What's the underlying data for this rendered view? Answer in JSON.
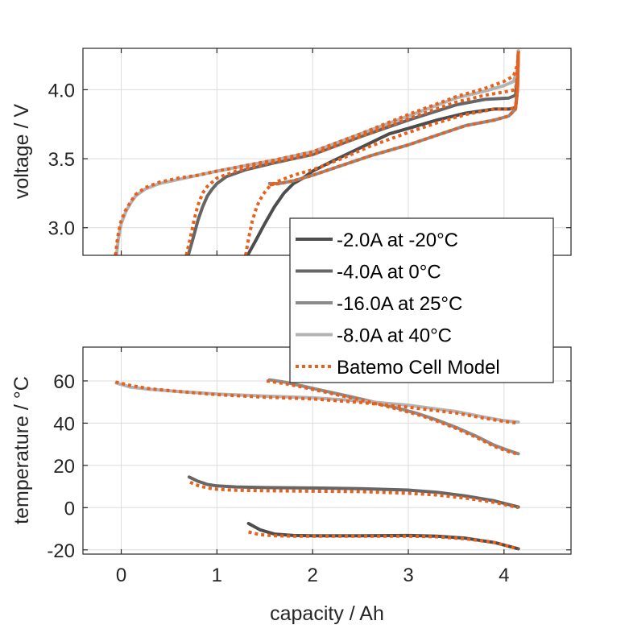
{
  "chart_data": [
    {
      "type": "line",
      "panel": "top",
      "title": "",
      "xlabel": "",
      "ylabel": "voltage / V",
      "xlim": [
        -0.4,
        4.7
      ],
      "ylim": [
        2.8,
        4.3
      ],
      "xticks": [
        0,
        1,
        2,
        3,
        4
      ],
      "xtick_labels": [],
      "yticks": [
        3.0,
        3.5,
        4.0
      ],
      "ytick_labels": [
        "3.0",
        "3.5",
        "4.0"
      ],
      "grid": true,
      "series": [
        {
          "name": "-2.0A at -20°C",
          "color": "#4d4d4d",
          "style": "solid",
          "x": [
            1.32,
            1.4,
            1.5,
            1.6,
            1.7,
            1.8,
            1.9,
            2.0,
            2.2,
            2.5,
            2.8,
            3.0,
            3.3,
            3.6,
            3.9,
            4.05,
            4.12,
            4.14,
            4.15
          ],
          "y": [
            2.8,
            2.9,
            3.03,
            3.15,
            3.25,
            3.32,
            3.36,
            3.41,
            3.48,
            3.58,
            3.68,
            3.72,
            3.78,
            3.83,
            3.86,
            3.86,
            3.87,
            4.0,
            4.28
          ]
        },
        {
          "name": "-4.0A at 0°C",
          "color": "#666666",
          "style": "solid",
          "x": [
            0.7,
            0.75,
            0.8,
            0.85,
            0.9,
            0.95,
            1.0,
            1.1,
            1.3,
            1.6,
            2.0,
            2.5,
            3.0,
            3.5,
            3.8,
            4.05,
            4.12,
            4.14,
            4.15
          ],
          "y": [
            2.8,
            2.92,
            3.05,
            3.15,
            3.23,
            3.28,
            3.32,
            3.37,
            3.42,
            3.47,
            3.53,
            3.66,
            3.78,
            3.89,
            3.93,
            3.94,
            3.96,
            4.1,
            4.28
          ]
        },
        {
          "name": "-16.0A at 25°C",
          "color": "#8c8c8c",
          "style": "solid",
          "x": [
            1.55,
            1.65,
            1.8,
            2.0,
            2.3,
            2.6,
            3.0,
            3.3,
            3.6,
            3.9,
            4.05,
            4.12,
            4.14,
            4.15
          ],
          "y": [
            3.32,
            3.32,
            3.34,
            3.38,
            3.45,
            3.52,
            3.6,
            3.67,
            3.74,
            3.78,
            3.81,
            3.86,
            4.0,
            4.28
          ]
        },
        {
          "name": "-8.0A at 40°C",
          "color": "#b3b3b3",
          "style": "solid",
          "x": [
            -0.05,
            -0.03,
            0.0,
            0.05,
            0.1,
            0.15,
            0.25,
            0.4,
            0.6,
            0.8,
            1.0,
            1.3,
            1.6,
            2.0,
            2.5,
            3.0,
            3.5,
            3.8,
            4.0,
            4.1,
            4.14,
            4.15
          ],
          "y": [
            2.8,
            2.92,
            3.03,
            3.12,
            3.18,
            3.23,
            3.28,
            3.32,
            3.35,
            3.38,
            3.41,
            3.45,
            3.49,
            3.55,
            3.68,
            3.81,
            3.94,
            3.99,
            4.03,
            4.06,
            4.15,
            4.28
          ]
        },
        {
          "name": "Batemo Cell Model",
          "color": "#e8601c",
          "style": "dotted",
          "segments": [
            {
              "x": [
                1.3,
                1.33,
                1.37,
                1.42,
                1.48,
                1.55,
                1.65,
                1.8,
                2.0,
                2.3,
                2.6,
                3.0,
                3.3,
                3.6,
                3.9,
                4.05,
                4.12,
                4.14,
                4.15
              ],
              "y": [
                2.8,
                2.92,
                3.05,
                3.16,
                3.24,
                3.3,
                3.34,
                3.38,
                3.42,
                3.5,
                3.59,
                3.69,
                3.76,
                3.82,
                3.86,
                3.86,
                3.87,
                4.0,
                4.28
              ]
            },
            {
              "x": [
                0.68,
                0.72,
                0.76,
                0.8,
                0.85,
                0.9,
                1.0,
                1.2,
                1.5,
                2.0,
                2.5,
                3.0,
                3.5,
                3.8,
                4.05,
                4.12,
                4.14,
                4.15
              ],
              "y": [
                2.8,
                2.92,
                3.05,
                3.16,
                3.25,
                3.3,
                3.36,
                3.41,
                3.46,
                3.53,
                3.66,
                3.79,
                3.91,
                3.96,
                3.99,
                4.0,
                4.1,
                4.28
              ]
            },
            {
              "x": [
                1.55,
                1.65,
                1.8,
                2.0,
                2.3,
                2.6,
                3.0,
                3.3,
                3.6,
                3.9,
                4.05,
                4.12,
                4.14,
                4.15
              ],
              "y": [
                3.31,
                3.32,
                3.34,
                3.38,
                3.45,
                3.52,
                3.6,
                3.67,
                3.74,
                3.78,
                3.81,
                3.86,
                4.0,
                4.28
              ]
            },
            {
              "x": [
                -0.06,
                -0.04,
                -0.01,
                0.04,
                0.1,
                0.15,
                0.25,
                0.4,
                0.6,
                0.8,
                1.0,
                1.3,
                1.6,
                2.0,
                2.5,
                3.0,
                3.5,
                3.8,
                4.0,
                4.1,
                4.14,
                4.15
              ],
              "y": [
                2.8,
                2.92,
                3.03,
                3.12,
                3.19,
                3.24,
                3.29,
                3.33,
                3.36,
                3.38,
                3.41,
                3.45,
                3.49,
                3.55,
                3.68,
                3.82,
                3.95,
                4.01,
                4.06,
                4.1,
                4.18,
                4.28
              ]
            }
          ]
        }
      ]
    },
    {
      "type": "line",
      "panel": "bottom",
      "title": "",
      "xlabel": "capacity / Ah",
      "ylabel": "temperature / °C",
      "xlim": [
        -0.4,
        4.7
      ],
      "ylim": [
        -22,
        76
      ],
      "xticks": [
        0,
        1,
        2,
        3,
        4
      ],
      "xtick_labels": [
        "0",
        "1",
        "2",
        "3",
        "4"
      ],
      "yticks": [
        -20,
        0,
        20,
        40,
        60
      ],
      "ytick_labels": [
        "-20",
        "0",
        "20",
        "40",
        "60"
      ],
      "grid": true,
      "series": [
        {
          "name": "-2.0A at -20°C",
          "color": "#4d4d4d",
          "style": "solid",
          "x": [
            1.33,
            1.45,
            1.6,
            1.8,
            2.0,
            2.5,
            3.0,
            3.3,
            3.6,
            3.9,
            4.15
          ],
          "y": [
            -7.5,
            -10.5,
            -12.5,
            -13.2,
            -13.3,
            -13.3,
            -13.2,
            -13.5,
            -14.5,
            -16.5,
            -19.5
          ]
        },
        {
          "name": "-4.0A at 0°C",
          "color": "#666666",
          "style": "solid",
          "x": [
            0.71,
            0.8,
            0.9,
            1.0,
            1.2,
            1.5,
            2.0,
            2.5,
            3.0,
            3.3,
            3.6,
            3.9,
            4.15
          ],
          "y": [
            14.5,
            12.5,
            11.0,
            10.3,
            9.8,
            9.5,
            9.3,
            9.0,
            8.3,
            7.3,
            5.5,
            3.2,
            0.3
          ]
        },
        {
          "name": "-16.0A at 25°C",
          "color": "#8c8c8c",
          "style": "solid",
          "x": [
            1.55,
            1.7,
            1.9,
            2.1,
            2.3,
            2.5,
            2.7,
            2.9,
            3.1,
            3.3,
            3.5,
            3.7,
            3.9,
            4.05,
            4.15
          ],
          "y": [
            60.5,
            59.5,
            57.5,
            55.5,
            53.5,
            51.5,
            49.3,
            47.0,
            44.5,
            41.5,
            38.0,
            34.0,
            29.5,
            27.0,
            25.5
          ]
        },
        {
          "name": "-8.0A at 40°C",
          "color": "#b3b3b3",
          "style": "solid",
          "x": [
            -0.05,
            0.1,
            0.3,
            0.6,
            1.0,
            1.5,
            2.0,
            2.5,
            3.0,
            3.5,
            3.8,
            4.0,
            4.15
          ],
          "y": [
            59.0,
            57.0,
            56.0,
            55.0,
            53.8,
            52.8,
            52.0,
            50.5,
            48.5,
            45.5,
            42.8,
            41.2,
            40.5
          ]
        },
        {
          "name": "Batemo Cell Model",
          "color": "#e8601c",
          "style": "dotted",
          "segments": [
            {
              "x": [
                1.33,
                1.45,
                1.6,
                1.8,
                2.0,
                2.5,
                3.0,
                3.3,
                3.6,
                3.9,
                4.15
              ],
              "y": [
                -11.5,
                -12.8,
                -13.3,
                -13.5,
                -13.5,
                -13.5,
                -13.5,
                -13.8,
                -14.8,
                -16.5,
                -19.5
              ]
            },
            {
              "x": [
                0.72,
                0.8,
                0.9,
                1.0,
                1.2,
                1.5,
                2.0,
                2.5,
                3.0,
                3.3,
                3.6,
                3.9,
                4.15
              ],
              "y": [
                12.0,
                10.5,
                9.3,
                8.7,
                8.2,
                8.0,
                7.8,
                7.6,
                6.8,
                6.0,
                4.5,
                2.5,
                0.0
              ]
            },
            {
              "x": [
                1.52,
                1.7,
                1.9,
                2.1,
                2.3,
                2.5,
                2.7,
                2.9,
                3.1,
                3.3,
                3.5,
                3.7,
                3.9,
                4.05,
                4.15
              ],
              "y": [
                60.0,
                58.8,
                57.0,
                55.0,
                53.0,
                51.0,
                48.8,
                46.5,
                44.0,
                41.0,
                37.5,
                33.5,
                29.0,
                26.5,
                25.3
              ]
            },
            {
              "x": [
                -0.06,
                0.1,
                0.3,
                0.6,
                1.0,
                1.5,
                2.0,
                2.5,
                3.0,
                3.5,
                3.8,
                4.0,
                4.15
              ],
              "y": [
                59.5,
                57.8,
                56.3,
                55.0,
                53.5,
                52.3,
                51.5,
                49.8,
                47.5,
                44.8,
                42.3,
                40.8,
                40.0
              ]
            }
          ]
        }
      ]
    }
  ],
  "legend": {
    "placement": "center-right",
    "entries": [
      {
        "label": "-2.0A at -20°C",
        "color": "#4d4d4d",
        "style": "solid"
      },
      {
        "label": "-4.0A at 0°C",
        "color": "#666666",
        "style": "solid"
      },
      {
        "label": "-16.0A at 25°C",
        "color": "#8c8c8c",
        "style": "solid"
      },
      {
        "label": "-8.0A at 40°C",
        "color": "#b3b3b3",
        "style": "solid"
      },
      {
        "label": "Batemo Cell Model",
        "color": "#e8601c",
        "style": "dotted"
      }
    ]
  }
}
